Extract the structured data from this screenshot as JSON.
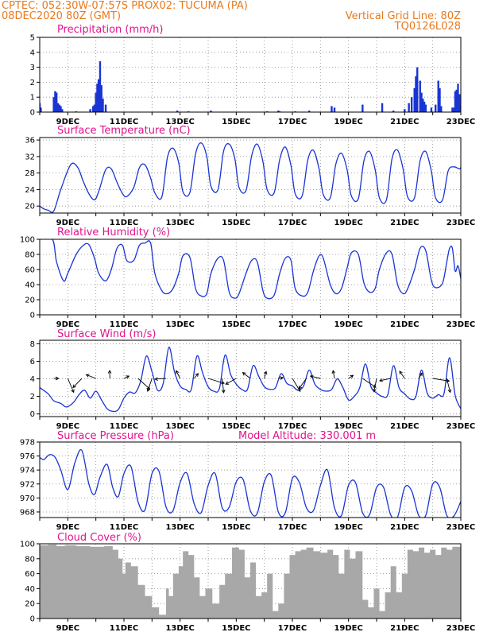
{
  "header": {
    "line1": "CPTEC:  052:30W-07:57S  PROX02: TUCUMA (PA)",
    "line2_left": "08DEC2020 80Z (GMT)",
    "line2_right": "Vertical Grid Line: 80Z",
    "line3_right": "TQ0126L028"
  },
  "colors": {
    "header": "#e87a1e",
    "title": "#e0148c",
    "line": "#1a34d4",
    "bar": "#1a34d4",
    "cloud": "#a8a8a8",
    "arrow": "#000000"
  },
  "chart_data": [
    {
      "type": "bar",
      "title": "Precipitation  (mm/h)",
      "x_day_labels": [
        "9DEC",
        "11DEC",
        "13DEC",
        "15DEC",
        "17DEC",
        "19DEC",
        "21DEC",
        "23DEC"
      ],
      "x_day_values": [
        9,
        11,
        13,
        15,
        17,
        19,
        21,
        23
      ],
      "xlim": [
        8.0,
        23.0
      ],
      "ylim": [
        0,
        5
      ],
      "yticks": [
        0,
        1,
        2,
        3,
        4,
        5
      ],
      "x": [
        8.0,
        8.04,
        8.5,
        8.55,
        8.6,
        8.65,
        8.7,
        8.75,
        8.8,
        9.3,
        9.8,
        9.9,
        9.95,
        10.0,
        10.05,
        10.1,
        10.15,
        10.2,
        10.25,
        10.35,
        12.9,
        13.3,
        14.1,
        16.1,
        16.5,
        16.55,
        17.1,
        17.6,
        18.4,
        18.5,
        19.5,
        20.2,
        20.6,
        21.0,
        21.15,
        21.25,
        21.35,
        21.4,
        21.45,
        21.55,
        21.6,
        21.65,
        21.7,
        21.75,
        21.95,
        22.1,
        22.2,
        22.25,
        22.3,
        22.7,
        22.75,
        22.8,
        22.85,
        22.9,
        22.95,
        23.0
      ],
      "values": [
        0.6,
        0.3,
        1.0,
        1.4,
        1.3,
        0.6,
        0.5,
        0.4,
        0.2,
        0.05,
        0.2,
        0.4,
        0.5,
        1.3,
        1.9,
        2.2,
        3.4,
        1.8,
        0.9,
        0.5,
        0.1,
        0.05,
        0.1,
        0.05,
        0.1,
        0.05,
        0.05,
        0.1,
        0.4,
        0.3,
        0.5,
        0.6,
        0.1,
        0.2,
        0.6,
        1.0,
        1.6,
        2.4,
        3.0,
        2.1,
        1.3,
        0.9,
        0.7,
        0.5,
        0.3,
        0.5,
        2.1,
        1.6,
        0.4,
        0.3,
        0.3,
        1.4,
        1.5,
        1.9,
        1.2,
        0.5
      ]
    },
    {
      "type": "line",
      "title": "Surface Temperature  (nC)",
      "x_day_labels": [
        "9DEC",
        "11DEC",
        "13DEC",
        "15DEC",
        "17DEC",
        "19DEC",
        "21DEC",
        "23DEC"
      ],
      "xlim": [
        8.0,
        23.0
      ],
      "ylim": [
        18.3,
        36.6
      ],
      "yticks": [
        20,
        24,
        28,
        32,
        36
      ],
      "x": [
        8.0,
        8.15,
        8.3,
        8.5,
        8.75,
        9.1,
        9.35,
        9.55,
        9.75,
        9.95,
        10.1,
        10.35,
        10.55,
        10.75,
        10.95,
        11.1,
        11.35,
        11.55,
        11.75,
        11.95,
        12.1,
        12.35,
        12.55,
        12.75,
        12.95,
        13.1,
        13.35,
        13.55,
        13.75,
        13.95,
        14.1,
        14.35,
        14.55,
        14.75,
        14.95,
        15.1,
        15.35,
        15.55,
        15.75,
        15.95,
        16.1,
        16.35,
        16.55,
        16.75,
        16.95,
        17.1,
        17.35,
        17.55,
        17.75,
        17.95,
        18.1,
        18.35,
        18.55,
        18.75,
        18.95,
        19.1,
        19.35,
        19.55,
        19.75,
        19.95,
        20.1,
        20.35,
        20.55,
        20.75,
        20.95,
        21.1,
        21.35,
        21.55,
        21.75,
        21.95,
        22.1,
        22.35,
        22.55,
        22.75,
        22.95,
        23.0
      ],
      "values": [
        20.0,
        19.3,
        19.0,
        18.8,
        24.0,
        30.0,
        29.4,
        26.0,
        23.0,
        21.5,
        23.5,
        28.8,
        29.0,
        25.8,
        23.0,
        22.3,
        24.5,
        29.3,
        30.0,
        26.8,
        23.2,
        22.2,
        31.8,
        34.0,
        30.5,
        23.5,
        23.3,
        32.6,
        35.3,
        32.0,
        24.8,
        24.0,
        33.3,
        35.0,
        31.5,
        24.5,
        23.8,
        32.2,
        35.0,
        30.8,
        24.0,
        23.2,
        31.3,
        34.3,
        29.8,
        23.0,
        22.5,
        31.2,
        33.5,
        29.0,
        22.8,
        22.0,
        30.2,
        32.8,
        28.8,
        22.5,
        21.8,
        31.0,
        33.2,
        28.8,
        22.0,
        21.5,
        31.5,
        33.5,
        28.8,
        22.3,
        22.0,
        31.0,
        33.2,
        28.5,
        22.0,
        21.5,
        28.5,
        29.5,
        29.0,
        29.4
      ]
    },
    {
      "type": "line",
      "title": "Relative Humidity  (%)",
      "x_day_labels": [
        "9DEC",
        "11DEC",
        "13DEC",
        "15DEC",
        "17DEC",
        "19DEC",
        "21DEC",
        "23DEC"
      ],
      "xlim": [
        8.0,
        23.0
      ],
      "ylim": [
        0,
        100
      ],
      "yticks": [
        0,
        20,
        40,
        60,
        80,
        100
      ],
      "x": [
        8.0,
        8.45,
        8.6,
        8.85,
        9.0,
        9.3,
        9.55,
        9.75,
        9.95,
        10.1,
        10.35,
        10.55,
        10.75,
        10.95,
        11.1,
        11.35,
        11.55,
        11.75,
        11.95,
        12.1,
        12.35,
        12.55,
        12.75,
        12.95,
        13.1,
        13.35,
        13.55,
        13.75,
        13.95,
        14.1,
        14.35,
        14.55,
        14.75,
        14.95,
        15.1,
        15.35,
        15.55,
        15.75,
        15.95,
        16.1,
        16.35,
        16.55,
        16.75,
        16.95,
        17.1,
        17.35,
        17.55,
        17.75,
        17.95,
        18.1,
        18.35,
        18.55,
        18.75,
        18.95,
        19.1,
        19.35,
        19.55,
        19.75,
        19.95,
        20.1,
        20.35,
        20.55,
        20.75,
        20.95,
        21.1,
        21.35,
        21.55,
        21.75,
        21.95,
        22.1,
        22.35,
        22.5,
        22.6,
        22.7,
        22.8,
        22.9,
        23.0
      ],
      "values": [
        100,
        100,
        70,
        45,
        55,
        80,
        92,
        93,
        75,
        55,
        45,
        60,
        88,
        92,
        72,
        72,
        92,
        95,
        95,
        55,
        32,
        28,
        35,
        55,
        78,
        76,
        35,
        25,
        28,
        55,
        75,
        72,
        30,
        22,
        28,
        55,
        72,
        70,
        32,
        22,
        26,
        55,
        75,
        72,
        35,
        25,
        30,
        58,
        78,
        75,
        40,
        28,
        35,
        62,
        82,
        80,
        42,
        30,
        35,
        60,
        82,
        80,
        40,
        28,
        34,
        60,
        88,
        85,
        46,
        36,
        42,
        70,
        88,
        88,
        58,
        65,
        48
      ]
    },
    {
      "type": "line",
      "title": "Surface Wind  (m/s)",
      "x_day_labels": [
        "9DEC",
        "11DEC",
        "13DEC",
        "15DEC",
        "17DEC",
        "19DEC",
        "21DEC",
        "23DEC"
      ],
      "xlim": [
        8.0,
        23.0
      ],
      "ylim": [
        -0.3,
        8.4
      ],
      "yticks": [
        0,
        2,
        4,
        6,
        8
      ],
      "x": [
        8.0,
        8.3,
        8.5,
        8.75,
        8.95,
        9.2,
        9.4,
        9.6,
        9.8,
        10.0,
        10.2,
        10.4,
        10.6,
        10.8,
        11.0,
        11.2,
        11.4,
        11.6,
        11.8,
        12.0,
        12.2,
        12.4,
        12.6,
        12.8,
        13.0,
        13.2,
        13.4,
        13.6,
        13.8,
        14.0,
        14.2,
        14.4,
        14.6,
        14.8,
        15.0,
        15.2,
        15.4,
        15.6,
        15.8,
        16.0,
        16.2,
        16.4,
        16.6,
        16.8,
        17.0,
        17.2,
        17.4,
        17.6,
        17.8,
        18.0,
        18.2,
        18.4,
        18.6,
        18.8,
        19.0,
        19.2,
        19.4,
        19.6,
        19.8,
        20.0,
        20.2,
        20.4,
        20.6,
        20.8,
        21.0,
        21.2,
        21.4,
        21.6,
        21.8,
        22.0,
        22.2,
        22.4,
        22.6,
        22.8,
        23.0
      ],
      "values": [
        3.0,
        2.3,
        1.5,
        1.2,
        0.8,
        1.3,
        2.2,
        2.7,
        1.8,
        2.6,
        1.6,
        0.6,
        0.3,
        0.5,
        1.8,
        2.5,
        2.4,
        3.8,
        6.6,
        4.8,
        2.7,
        3.5,
        7.6,
        4.8,
        3.2,
        2.8,
        2.8,
        6.6,
        4.7,
        3.1,
        2.6,
        2.9,
        6.7,
        4.5,
        3.4,
        2.8,
        2.8,
        5.5,
        4.3,
        3.1,
        2.8,
        3.0,
        4.6,
        3.5,
        3.2,
        2.7,
        3.2,
        5.0,
        3.4,
        2.8,
        2.6,
        2.8,
        4.0,
        3.0,
        1.6,
        2.0,
        3.0,
        5.7,
        3.1,
        2.4,
        2.0,
        2.2,
        5.5,
        3.0,
        2.3,
        1.7,
        2.0,
        5.0,
        2.4,
        1.8,
        2.2,
        2.3,
        6.4,
        2.1,
        0.6
      ]
    },
    {
      "type": "line",
      "title": "Surface Pressure  (hPa)",
      "annotation": "Model Altitude: 330.001  m",
      "x_day_labels": [
        "9DEC",
        "11DEC",
        "13DEC",
        "15DEC",
        "17DEC",
        "19DEC",
        "21DEC",
        "23DEC"
      ],
      "xlim": [
        8.0,
        23.0
      ],
      "ylim": [
        967.2,
        978.0
      ],
      "yticks": [
        968,
        970,
        972,
        974,
        976,
        978
      ],
      "x": [
        8.0,
        8.15,
        8.35,
        8.55,
        8.75,
        9.0,
        9.25,
        9.5,
        9.75,
        9.95,
        10.15,
        10.4,
        10.6,
        10.8,
        11.0,
        11.25,
        11.5,
        11.75,
        12.0,
        12.25,
        12.5,
        12.75,
        13.0,
        13.25,
        13.5,
        13.75,
        14.0,
        14.25,
        14.5,
        14.75,
        15.0,
        15.25,
        15.5,
        15.75,
        16.0,
        16.25,
        16.5,
        16.75,
        17.0,
        17.25,
        17.5,
        17.75,
        18.0,
        18.25,
        18.5,
        18.75,
        19.0,
        19.25,
        19.5,
        19.75,
        20.0,
        20.25,
        20.5,
        20.75,
        21.0,
        21.25,
        21.5,
        21.75,
        22.0,
        22.25,
        22.5,
        22.75,
        23.0
      ],
      "values": [
        975.8,
        975.5,
        976.2,
        975.8,
        974.0,
        971.2,
        975.0,
        976.8,
        972.0,
        970.5,
        973.0,
        974.8,
        971.5,
        970.2,
        973.5,
        974.5,
        969.5,
        968.3,
        973.5,
        973.8,
        968.7,
        968.2,
        972.2,
        973.5,
        969.2,
        967.9,
        971.8,
        973.5,
        968.6,
        968.7,
        972.3,
        972.6,
        968.2,
        967.8,
        972.3,
        973.2,
        968.0,
        967.9,
        972.8,
        972.2,
        968.6,
        968.2,
        971.8,
        974.0,
        968.6,
        967.5,
        971.8,
        972.2,
        967.9,
        967.6,
        971.5,
        971.5,
        967.6,
        967.3,
        971.5,
        971.0,
        967.5,
        967.5,
        972.0,
        971.5,
        967.5,
        967.4,
        969.5
      ]
    },
    {
      "type": "area",
      "title": "Cloud Cover  (%)",
      "x_day_labels": [
        "9DEC",
        "11DEC",
        "13DEC",
        "15DEC",
        "17DEC",
        "19DEC",
        "21DEC",
        "23DEC"
      ],
      "xlim": [
        8.0,
        23.0
      ],
      "ylim": [
        0,
        100
      ],
      "yticks": [
        0,
        20,
        40,
        60,
        80,
        100
      ],
      "x": [
        8.0,
        8.3,
        8.6,
        8.9,
        9.3,
        9.8,
        10.3,
        10.6,
        10.8,
        10.95,
        11.05,
        11.25,
        11.5,
        11.75,
        12.0,
        12.25,
        12.5,
        12.6,
        12.75,
        12.95,
        13.1,
        13.3,
        13.5,
        13.7,
        13.9,
        14.15,
        14.4,
        14.6,
        14.85,
        15.1,
        15.3,
        15.5,
        15.7,
        15.9,
        16.1,
        16.3,
        16.5,
        16.7,
        16.9,
        17.1,
        17.3,
        17.5,
        17.75,
        18.0,
        18.25,
        18.45,
        18.65,
        18.85,
        19.05,
        19.25,
        19.5,
        19.7,
        19.9,
        20.1,
        20.3,
        20.5,
        20.7,
        20.9,
        21.1,
        21.3,
        21.5,
        21.7,
        21.9,
        22.1,
        22.3,
        22.5,
        22.7,
        23.0
      ],
      "values": [
        98,
        99,
        97,
        98,
        97,
        96,
        97,
        92,
        80,
        60,
        75,
        70,
        45,
        30,
        15,
        5,
        40,
        30,
        60,
        70,
        90,
        85,
        55,
        30,
        40,
        20,
        45,
        60,
        95,
        92,
        55,
        75,
        30,
        35,
        60,
        10,
        20,
        60,
        85,
        90,
        92,
        95,
        90,
        88,
        92,
        85,
        60,
        92,
        80,
        90,
        25,
        15,
        40,
        10,
        35,
        70,
        35,
        60,
        92,
        90,
        95,
        88,
        92,
        85,
        95,
        92,
        96,
        98
      ]
    }
  ]
}
